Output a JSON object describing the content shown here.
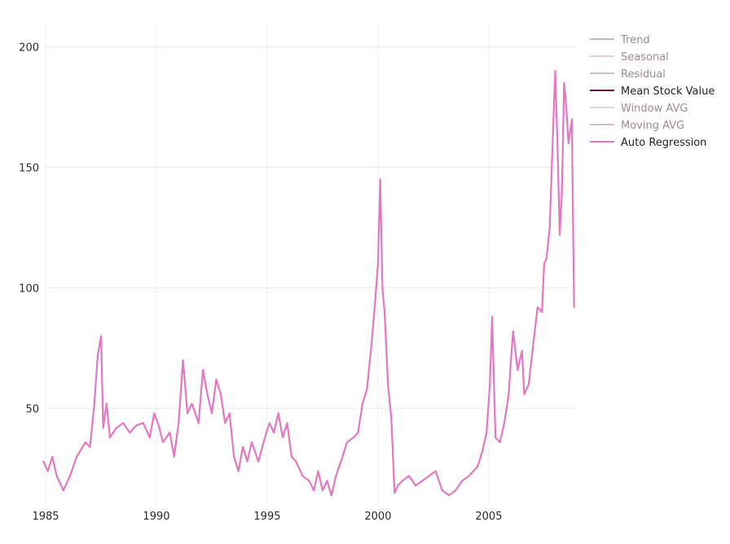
{
  "chart_data": {
    "type": "line",
    "title": "",
    "xlabel": "",
    "ylabel": "",
    "xlim": [
      1985,
      2008.9
    ],
    "ylim": [
      10,
      210
    ],
    "x_ticks": [
      1985,
      1990,
      1995,
      2000,
      2005
    ],
    "y_ticks": [
      50,
      100,
      150,
      200
    ],
    "grid": true,
    "legend_placement": "top-right",
    "legend": [
      {
        "name": "Trend",
        "color": "#9a7a8e",
        "active": false
      },
      {
        "name": "Seasonal",
        "color": "#d7a6bf",
        "active": false
      },
      {
        "name": "Residual",
        "color": "#a88b99",
        "active": false
      },
      {
        "name": "Mean Stock Value",
        "color": "#6b0a4a",
        "active": true
      },
      {
        "name": "Window AVG",
        "color": "#c9b4c0",
        "active": false
      },
      {
        "name": "Moving AVG",
        "color": "#b28da1",
        "active": false
      },
      {
        "name": "Auto Regression",
        "color": "#e377c2",
        "active": true
      }
    ],
    "series": [
      {
        "name": "Auto Regression",
        "color": "#e377c2",
        "x": [
          1984.9,
          1985.1,
          1985.3,
          1985.5,
          1985.8,
          1986.1,
          1986.4,
          1986.8,
          1987.0,
          1987.2,
          1987.35,
          1987.5,
          1987.6,
          1987.75,
          1987.9,
          1988.2,
          1988.5,
          1988.8,
          1989.1,
          1989.4,
          1989.7,
          1989.9,
          1990.1,
          1990.3,
          1990.6,
          1990.8,
          1991.0,
          1991.2,
          1991.4,
          1991.6,
          1991.9,
          1992.1,
          1992.3,
          1992.5,
          1992.7,
          1992.9,
          1993.1,
          1993.3,
          1993.5,
          1993.7,
          1993.9,
          1994.1,
          1994.3,
          1994.6,
          1994.9,
          1995.1,
          1995.3,
          1995.5,
          1995.7,
          1995.9,
          1996.1,
          1996.3,
          1996.6,
          1996.9,
          1997.1,
          1997.3,
          1997.5,
          1997.7,
          1997.9,
          1998.1,
          1998.4,
          1998.6,
          1998.9,
          1999.1,
          1999.3,
          1999.5,
          1999.7,
          1999.85,
          2000.0,
          2000.1,
          2000.2,
          2000.3,
          2000.45,
          2000.6,
          2000.75,
          2000.9,
          2001.1,
          2001.4,
          2001.7,
          2002.0,
          2002.3,
          2002.6,
          2002.9,
          2003.2,
          2003.5,
          2003.8,
          2004.1,
          2004.3,
          2004.5,
          2004.7,
          2004.9,
          2005.05,
          2005.15,
          2005.3,
          2005.5,
          2005.7,
          2005.9,
          2006.0,
          2006.1,
          2006.3,
          2006.5,
          2006.6,
          2006.8,
          2007.0,
          2007.2,
          2007.4,
          2007.5,
          2007.6,
          2007.75,
          2007.9,
          2008.0,
          2008.1,
          2008.2,
          2008.3,
          2008.4,
          2008.5,
          2008.6,
          2008.75,
          2008.85
        ],
        "values": [
          28,
          24,
          30,
          22,
          16,
          22,
          30,
          36,
          34,
          52,
          72,
          80,
          42,
          52,
          38,
          42,
          44,
          40,
          43,
          44,
          38,
          48,
          43,
          36,
          40,
          30,
          44,
          70,
          48,
          52,
          44,
          66,
          56,
          48,
          62,
          56,
          44,
          48,
          30,
          24,
          34,
          28,
          36,
          28,
          38,
          44,
          40,
          48,
          38,
          44,
          30,
          28,
          22,
          20,
          16,
          24,
          16,
          20,
          14,
          22,
          30,
          36,
          38,
          40,
          52,
          58,
          76,
          92,
          110,
          145,
          100,
          90,
          60,
          46,
          15,
          18,
          20,
          22,
          18,
          20,
          22,
          24,
          16,
          14,
          16,
          20,
          22,
          24,
          26,
          32,
          40,
          60,
          88,
          38,
          36,
          44,
          56,
          70,
          82,
          66,
          74,
          56,
          60,
          76,
          92,
          90,
          110,
          112,
          125,
          165,
          190,
          160,
          122,
          140,
          185,
          175,
          160,
          170,
          92
        ]
      }
    ]
  }
}
